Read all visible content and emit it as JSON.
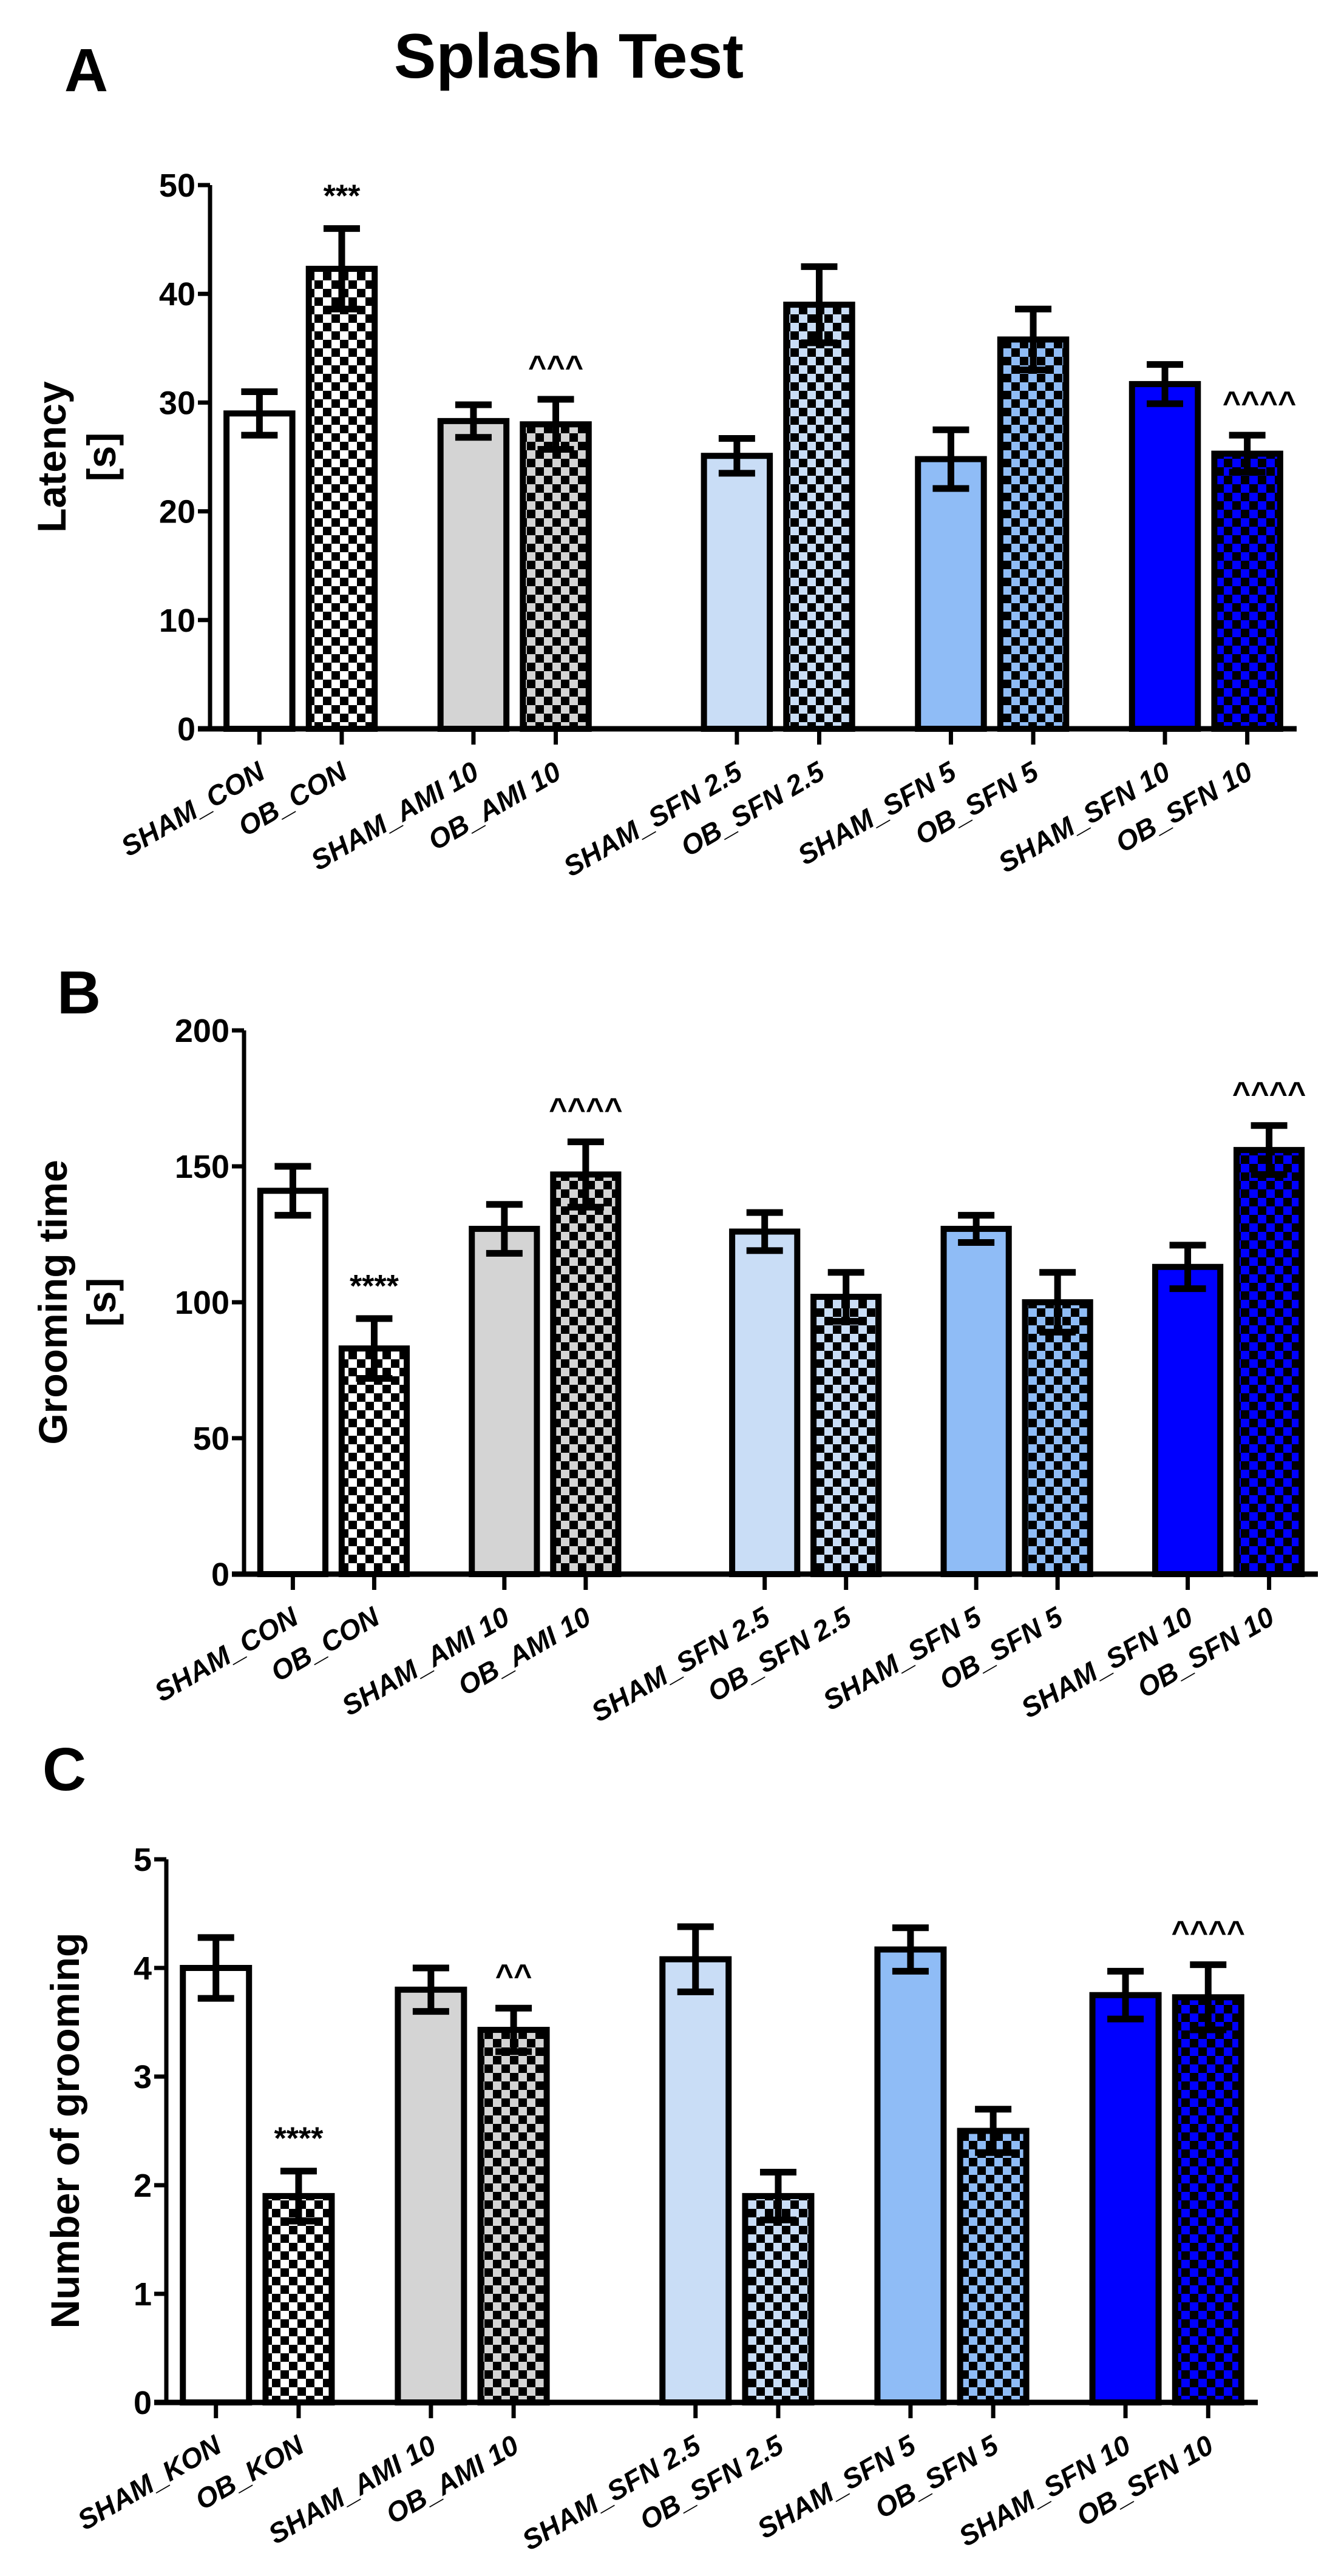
{
  "title": "Splash Test",
  "colors": {
    "white": "#ffffff",
    "gray": "#d4d4d4",
    "lightblue": "#c9ddf6",
    "midblue": "#8fbcf6",
    "blue": "#0000ff",
    "black": "#000000"
  },
  "chart_data": [
    {
      "type": "bar",
      "panel": "A",
      "title": "Splash Test",
      "ylabel": [
        "Latency",
        "[s]"
      ],
      "ylim": [
        0,
        50
      ],
      "yticks": [
        "0",
        "10",
        "20",
        "30",
        "40",
        "50"
      ],
      "categories": [
        "SHAM_CON",
        "OB_CON",
        "SHAM_AMI 10",
        "OB_AMI 10",
        "SHAM_SFN 2.5",
        "OB_SFN 2.5",
        "SHAM_SFN 5",
        "OB_SFN 5",
        "SHAM_SFN 10",
        "OB_SFN 10"
      ],
      "values": [
        29.0,
        42.3,
        28.3,
        28.0,
        25.1,
        39.0,
        24.8,
        35.8,
        31.7,
        25.3
      ],
      "errors": [
        2.0,
        3.7,
        1.5,
        2.3,
        1.6,
        3.5,
        2.7,
        2.8,
        1.8,
        1.7
      ],
      "fills": [
        "white",
        "white",
        "gray",
        "gray",
        "lightblue",
        "lightblue",
        "midblue",
        "midblue",
        "blue",
        "blue"
      ],
      "patterned": [
        false,
        true,
        false,
        true,
        false,
        true,
        false,
        true,
        false,
        true
      ],
      "annotations": [
        "",
        "***",
        "",
        "^^^",
        "",
        "",
        "",
        "",
        "",
        "^^^^"
      ]
    },
    {
      "type": "bar",
      "panel": "B",
      "ylabel": [
        "Grooming time",
        "[s]"
      ],
      "ylim": [
        0,
        200
      ],
      "yticks": [
        "0",
        "50",
        "100",
        "150",
        "200"
      ],
      "categories": [
        "SHAM_CON",
        "OB_CON",
        "SHAM_AMI 10",
        "OB_AMI 10",
        "SHAM_SFN 2.5",
        "OB_SFN 2.5",
        "SHAM_SFN 5",
        "OB_SFN 5",
        "SHAM_SFN 10",
        "OB_SFN 10"
      ],
      "values": [
        141,
        83,
        127,
        147,
        126,
        102,
        127,
        100,
        113,
        156
      ],
      "errors": [
        9,
        11,
        9,
        12,
        7,
        9,
        5,
        11,
        8,
        9
      ],
      "fills": [
        "white",
        "white",
        "gray",
        "gray",
        "lightblue",
        "lightblue",
        "midblue",
        "midblue",
        "blue",
        "blue"
      ],
      "patterned": [
        false,
        true,
        false,
        true,
        false,
        true,
        false,
        true,
        false,
        true
      ],
      "annotations": [
        "",
        "****",
        "",
        "^^^^",
        "",
        "",
        "",
        "",
        "",
        "^^^^"
      ]
    },
    {
      "type": "bar",
      "panel": "C",
      "ylabel": [
        "Number of grooming"
      ],
      "ylim": [
        0,
        5
      ],
      "yticks": [
        "0",
        "1",
        "2",
        "3",
        "4",
        "5"
      ],
      "categories": [
        "SHAM_KON",
        "OB_KON",
        "SHAM_AMI 10",
        "OB_AMI 10",
        "SHAM_SFN 2.5",
        "OB_SFN 2.5",
        "SHAM_SFN 5",
        "OB_SFN 5",
        "SHAM_SFN 10",
        "OB_SFN 10"
      ],
      "values": [
        4.0,
        1.9,
        3.8,
        3.43,
        4.08,
        1.9,
        4.17,
        2.5,
        3.75,
        3.73
      ],
      "errors": [
        0.28,
        0.23,
        0.2,
        0.2,
        0.3,
        0.22,
        0.2,
        0.2,
        0.22,
        0.3
      ],
      "fills": [
        "white",
        "white",
        "gray",
        "gray",
        "lightblue",
        "lightblue",
        "midblue",
        "midblue",
        "blue",
        "blue"
      ],
      "patterned": [
        false,
        true,
        false,
        true,
        false,
        true,
        false,
        true,
        false,
        true
      ],
      "annotations": [
        "",
        "****",
        "",
        "^^",
        "",
        "",
        "",
        "",
        "",
        "^^^^"
      ]
    }
  ]
}
